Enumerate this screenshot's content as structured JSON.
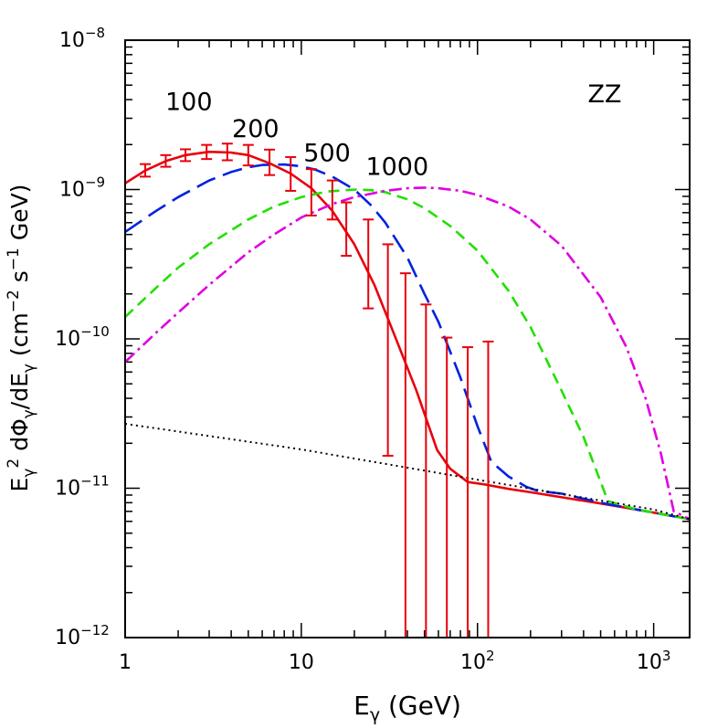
{
  "chart_data": {
    "type": "line",
    "title": "",
    "annotation": "ZZ",
    "xlabel": {
      "main": "E",
      "sub": "γ",
      "unit": " (GeV)"
    },
    "ylabel": {
      "parts": [
        {
          "t": "E",
          "style": ""
        },
        {
          "t": "γ",
          "style": "sub"
        },
        {
          "t": "2",
          "style": "sup"
        },
        {
          "t": " dΦ",
          "style": ""
        },
        {
          "t": "γ",
          "style": "sub"
        },
        {
          "t": "/dE",
          "style": ""
        },
        {
          "t": "γ",
          "style": "sub"
        },
        {
          "t": " (cm",
          "style": ""
        },
        {
          "t": "−2",
          "style": "sup"
        },
        {
          "t": " s",
          "style": ""
        },
        {
          "t": "−1",
          "style": "sup"
        },
        {
          "t": " GeV)",
          "style": ""
        }
      ]
    },
    "xscale": "log",
    "yscale": "log",
    "xlim": [
      1,
      1600
    ],
    "ylim": [
      1e-12,
      1e-08
    ],
    "x_ticks": [
      {
        "value": 1,
        "base": "1",
        "exp": ""
      },
      {
        "value": 10,
        "base": "10",
        "exp": ""
      },
      {
        "value": 100,
        "base": "10",
        "exp": "2"
      },
      {
        "value": 1000,
        "base": "10",
        "exp": "3"
      }
    ],
    "y_ticks": [
      {
        "value": 1e-12,
        "base": "10",
        "exp": "−12"
      },
      {
        "value": 1e-11,
        "base": "10",
        "exp": "−11"
      },
      {
        "value": 1e-10,
        "base": "10",
        "exp": "−10"
      },
      {
        "value": 1e-09,
        "base": "10",
        "exp": "−9"
      },
      {
        "value": 1e-08,
        "base": "10",
        "exp": "−8"
      }
    ],
    "mass_labels": [
      {
        "text": "100",
        "x": 2.3,
        "y": 3.4e-09
      },
      {
        "text": "200",
        "x": 5.5,
        "y": 2.25e-09
      },
      {
        "text": "500",
        "x": 14,
        "y": 1.55e-09
      },
      {
        "text": "1000",
        "x": 35,
        "y": 1.25e-09
      }
    ],
    "series": [
      {
        "name": "100",
        "color": "#e8000b",
        "dash": "",
        "x": [
          1,
          1.3,
          1.7,
          2.2,
          3,
          4,
          5,
          6.6,
          8.7,
          11.4,
          15,
          20,
          26,
          34,
          45,
          59,
          70,
          88,
          110,
          150,
          200,
          300,
          500,
          800,
          1200,
          1600
        ],
        "y": [
          1.1e-09,
          1.34e-09,
          1.55e-09,
          1.7e-09,
          1.79e-09,
          1.77e-09,
          1.7e-09,
          1.5e-09,
          1.28e-09,
          1.02e-09,
          7.2e-10,
          4.3e-10,
          2.3e-10,
          1.04e-10,
          4.5e-11,
          1.8e-11,
          1.35e-11,
          1.1e-11,
          1.06e-11,
          9.9e-12,
          9.4e-12,
          8.7e-12,
          7.9e-12,
          7.2e-12,
          6.6e-12,
          6.2e-12
        ]
      },
      {
        "name": "200",
        "color": "#0022e0",
        "dash": "22,9",
        "x": [
          1,
          1.5,
          2,
          3,
          4,
          5,
          6,
          8,
          10,
          12,
          15,
          20,
          25,
          30,
          40,
          50,
          60,
          80,
          100,
          120,
          150,
          190,
          220,
          300,
          500,
          800,
          1200,
          1600
        ],
        "y": [
          5.2e-10,
          7.2e-10,
          8.9e-10,
          1.15e-09,
          1.31e-09,
          1.41e-09,
          1.46e-09,
          1.47e-09,
          1.43e-09,
          1.36e-09,
          1.22e-09,
          1e-09,
          7.8e-10,
          6e-10,
          3.5e-10,
          2e-10,
          1.3e-10,
          5.5e-11,
          2.6e-11,
          1.5e-11,
          1.2e-11,
          1.02e-11,
          9.6e-12,
          9.2e-12,
          8e-12,
          7.2e-12,
          6.6e-12,
          6.2e-12
        ]
      },
      {
        "name": "500",
        "color": "#22e000",
        "dash": "12,7",
        "x": [
          1,
          1.5,
          2,
          3,
          5,
          7,
          10,
          14,
          20,
          25,
          30,
          40,
          50,
          70,
          100,
          150,
          200,
          300,
          400,
          550,
          800,
          1200,
          1600
        ],
        "y": [
          1.4e-10,
          2.2e-10,
          3e-10,
          4.3e-10,
          6.3e-10,
          7.7e-10,
          8.9e-10,
          9.7e-10,
          1e-09,
          9.9e-10,
          9.6e-10,
          8.6e-10,
          7.5e-10,
          5.7e-10,
          3.9e-10,
          2.1e-10,
          1.2e-10,
          4.5e-11,
          2.2e-11,
          8.2e-12,
          7.2e-12,
          6.6e-12,
          6.2e-12
        ]
      },
      {
        "name": "1000",
        "color": "#e000e0",
        "dash": "14,5,3,5",
        "x": [
          1,
          1.5,
          2,
          3,
          5,
          7,
          10,
          15,
          20,
          30,
          40,
          50,
          60,
          80,
          100,
          150,
          200,
          300,
          500,
          700,
          900,
          1100,
          1300,
          1600
        ],
        "y": [
          7e-11,
          1.1e-10,
          1.5e-10,
          2.3e-10,
          3.8e-10,
          5e-10,
          6.5e-10,
          8e-10,
          8.9e-10,
          9.8e-10,
          1.02e-09,
          1.03e-09,
          1.02e-09,
          9.8e-10,
          9.2e-10,
          7.7e-10,
          6.3e-10,
          4.2e-10,
          1.9e-10,
          8.8e-11,
          4e-11,
          1.7e-11,
          7e-12,
          6.2e-12
        ]
      },
      {
        "name": "",
        "color": "#000000",
        "dash": "2,4",
        "x": [
          1,
          10,
          100,
          1000,
          1600
        ],
        "y": [
          2.7e-11,
          1.82e-11,
          1.14e-11,
          7.2e-12,
          6.2e-12
        ]
      }
    ],
    "error_bars": {
      "color": "#e8000b",
      "points": [
        {
          "x": 1.3,
          "lo": 1.22e-09,
          "hi": 1.48e-09
        },
        {
          "x": 1.7,
          "lo": 1.42e-09,
          "hi": 1.7e-09
        },
        {
          "x": 2.2,
          "lo": 1.55e-09,
          "hi": 1.86e-09
        },
        {
          "x": 2.9,
          "lo": 1.6e-09,
          "hi": 1.99e-09
        },
        {
          "x": 3.8,
          "lo": 1.57e-09,
          "hi": 2.03e-09
        },
        {
          "x": 5,
          "lo": 1.45e-09,
          "hi": 1.99e-09
        },
        {
          "x": 6.6,
          "lo": 1.25e-09,
          "hi": 1.85e-09
        },
        {
          "x": 8.7,
          "lo": 9.8e-10,
          "hi": 1.65e-09
        },
        {
          "x": 11.4,
          "lo": 6.7e-10,
          "hi": 1.37e-09
        },
        {
          "x": 15,
          "lo": 6.3e-10,
          "hi": 1.15e-09
        },
        {
          "x": 18,
          "lo": 3.6e-10,
          "hi": 8.2e-10
        },
        {
          "x": 24,
          "lo": 1.6e-10,
          "hi": 6.3e-10
        },
        {
          "x": 31,
          "lo": 1.65e-11,
          "hi": 4.3e-10
        },
        {
          "x": 39,
          "lo": 1e-12,
          "hi": 2.75e-10
        },
        {
          "x": 51,
          "lo": 1e-12,
          "hi": 1.7e-10
        },
        {
          "x": 67,
          "lo": 1e-12,
          "hi": 1.02e-10
        },
        {
          "x": 88,
          "lo": 1e-12,
          "hi": 8.8e-11
        },
        {
          "x": 115,
          "lo": 1e-12,
          "hi": 9.6e-11
        }
      ]
    }
  }
}
